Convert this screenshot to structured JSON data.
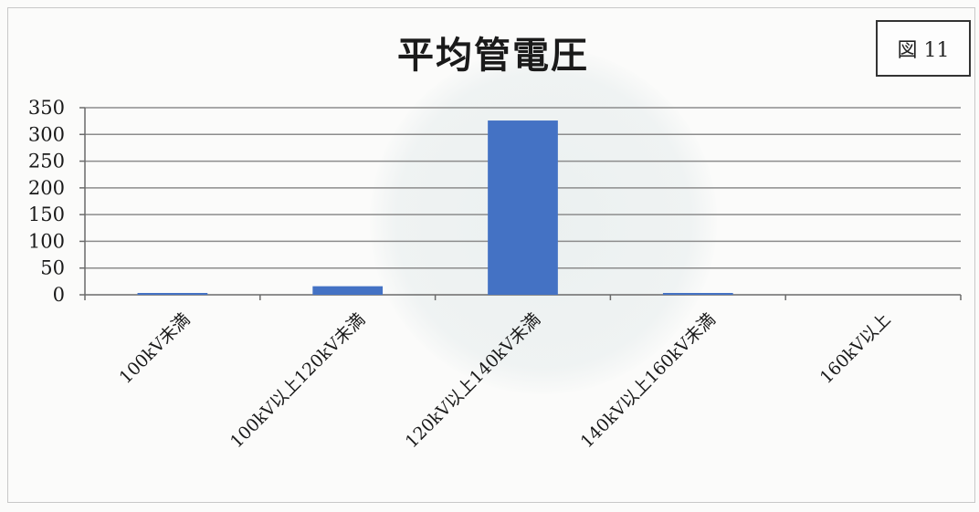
{
  "figure_label": "図 11",
  "chart_data": {
    "type": "bar",
    "title": "平均管電圧",
    "categories": [
      "100kV未満",
      "100kV以上120kV未満",
      "120kV以上140kV未満",
      "140kV以上160kV未満",
      "160kV以上"
    ],
    "values": [
      1,
      16,
      326,
      2,
      0
    ],
    "ylim": [
      0,
      350
    ],
    "yticks": [
      0,
      50,
      100,
      150,
      200,
      250,
      300,
      350
    ],
    "xlabel": "",
    "ylabel": "",
    "grid": true,
    "legend": "none",
    "bar_color": "#4472c4",
    "grid_color": "#8c8c8c"
  }
}
